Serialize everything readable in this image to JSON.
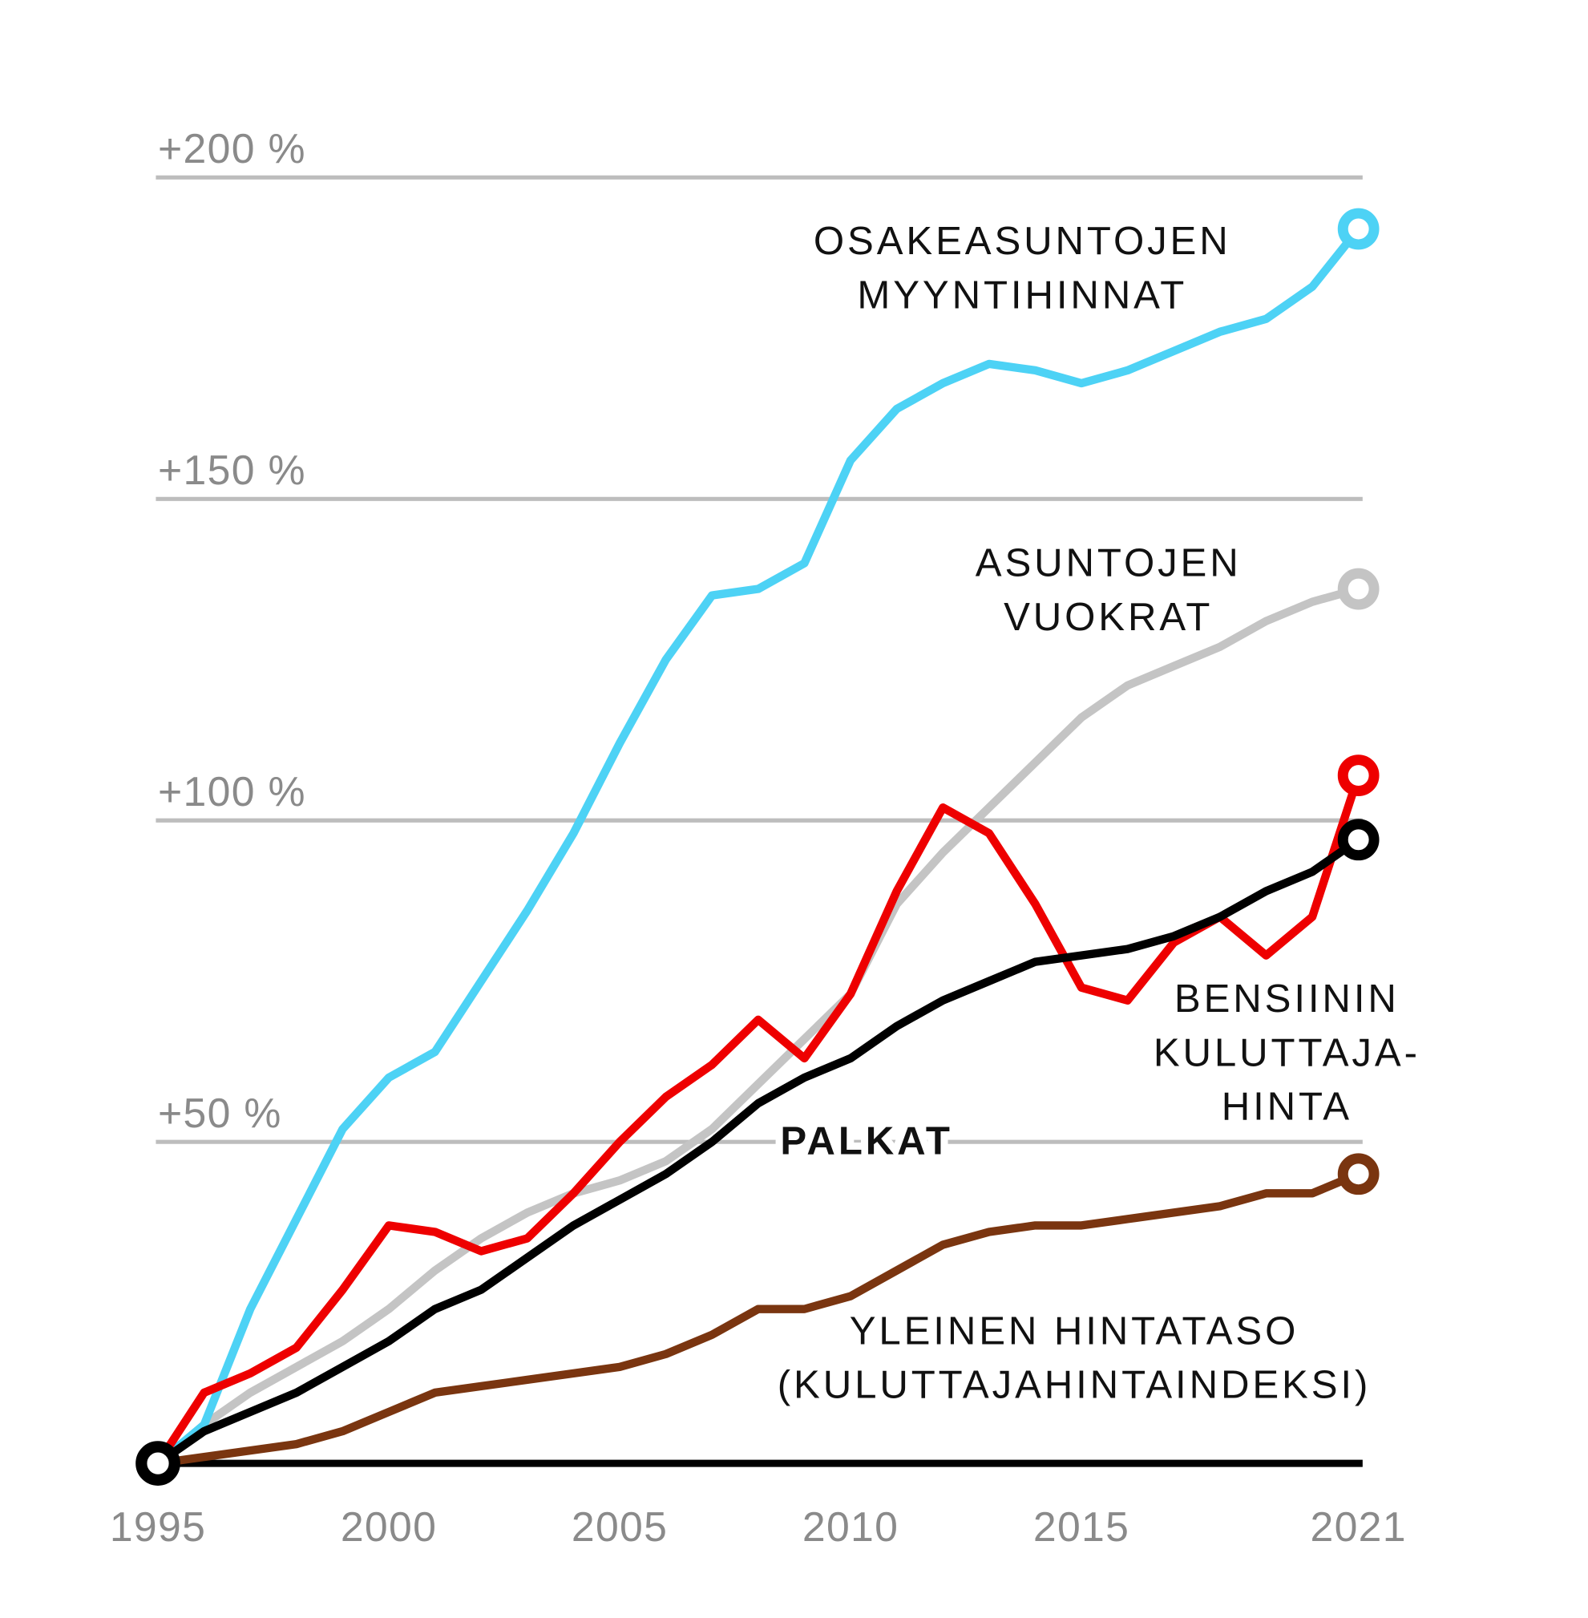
{
  "chart_data": {
    "type": "line",
    "x": [
      1995,
      1996,
      1997,
      1998,
      1999,
      2000,
      2001,
      2002,
      2003,
      2004,
      2005,
      2006,
      2007,
      2008,
      2009,
      2010,
      2011,
      2012,
      2013,
      2014,
      2015,
      2016,
      2017,
      2018,
      2019,
      2020,
      2021
    ],
    "xlim": [
      1995,
      2021
    ],
    "xticks": [
      1995,
      2000,
      2005,
      2010,
      2015,
      2021
    ],
    "ylim": [
      0,
      200
    ],
    "yticks": [
      {
        "value": 50,
        "label": "+50 %"
      },
      {
        "value": 100,
        "label": "+100 %"
      },
      {
        "value": 150,
        "label": "+150 %"
      },
      {
        "value": 200,
        "label": "+200 %"
      }
    ],
    "grid": true,
    "series": [
      {
        "name": [
          "ASUNTOJEN",
          "VUOKRAT"
        ],
        "color": "#c4c4c4",
        "values": [
          0,
          6,
          11,
          15,
          19,
          24,
          30,
          35,
          39,
          42,
          44,
          47,
          52,
          59,
          66,
          73,
          87,
          95,
          102,
          109,
          116,
          121,
          124,
          127,
          131,
          134,
          136
        ]
      },
      {
        "name": [
          "OSAKEASUNTOJEN",
          "MYYNTIHINNAT"
        ],
        "color": "#4dd2f5",
        "values": [
          0,
          6,
          24,
          38,
          52,
          60,
          64,
          75,
          86,
          98,
          112,
          125,
          135,
          136,
          140,
          156,
          164,
          168,
          171,
          170,
          168,
          170,
          173,
          176,
          178,
          183,
          192
        ]
      },
      {
        "name": [
          "YLEINEN HINTATASO",
          "(KULUTTAJAHINTAINDEKSI)"
        ],
        "color": "#7a3510",
        "values": [
          0,
          1,
          2,
          3,
          5,
          8,
          11,
          12,
          13,
          14,
          15,
          17,
          20,
          24,
          24,
          26,
          30,
          34,
          36,
          37,
          37,
          38,
          39,
          40,
          42,
          42,
          45
        ]
      },
      {
        "name": [
          "BENSIININ",
          "KULUTTAJA-",
          "HINTA"
        ],
        "color": "#ee0000",
        "values": [
          0,
          11,
          14,
          18,
          27,
          37,
          36,
          33,
          35,
          42,
          50,
          57,
          62,
          69,
          63,
          73,
          89,
          102,
          98,
          87,
          74,
          72,
          81,
          85,
          79,
          85,
          107
        ]
      },
      {
        "name": [
          "PALKAT"
        ],
        "color": "#000000",
        "values": [
          0,
          5,
          8,
          11,
          15,
          19,
          24,
          27,
          32,
          37,
          41,
          45,
          50,
          56,
          60,
          63,
          68,
          72,
          75,
          78,
          79,
          80,
          82,
          85,
          89,
          92,
          97
        ]
      }
    ]
  }
}
